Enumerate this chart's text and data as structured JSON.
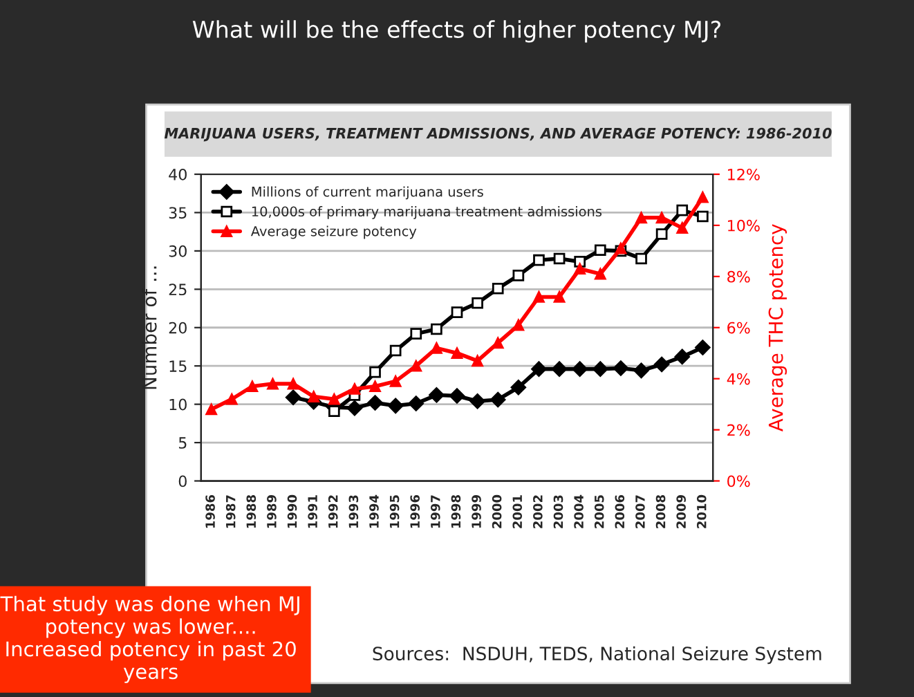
{
  "chart_data": {
    "type": "line",
    "title": "MARIJUANA USERS, TREATMENT ADMISSIONS, AND AVERAGE POTENCY: 1986-2010",
    "subtitle": "What will be the effects of higher potency MJ?",
    "ylabel": "Number of ...",
    "y2label": "Average THC potency",
    "categories": [
      "1986",
      "1987",
      "1988",
      "1989",
      "1990",
      "1991",
      "1992",
      "1993",
      "1994",
      "1995",
      "1996",
      "1997",
      "1998",
      "1999",
      "2000",
      "2001",
      "2002",
      "2003",
      "2004",
      "2005",
      "2006",
      "2007",
      "2008",
      "2009",
      "2010"
    ],
    "series": [
      {
        "name": "Millions of current marijuana users",
        "color": "#000000",
        "marker": "diamond",
        "values": [
          null,
          null,
          null,
          null,
          10.9,
          10.3,
          9.6,
          9.5,
          10.2,
          9.8,
          10.1,
          11.2,
          11.1,
          10.4,
          10.6,
          12.2,
          14.6,
          14.6,
          14.6,
          14.6,
          14.7,
          14.4,
          15.2,
          16.2,
          17.4
        ]
      },
      {
        "name": "10,000s of primary marijuana treatment admissions",
        "color": "#000000",
        "marker": "square",
        "values": [
          null,
          null,
          null,
          null,
          null,
          null,
          9.1,
          11.2,
          14.2,
          17.0,
          19.2,
          19.8,
          22.0,
          23.2,
          25.1,
          26.8,
          28.8,
          29.0,
          28.6,
          30.1,
          30.0,
          29.0,
          32.2,
          35.3,
          34.5
        ]
      },
      {
        "name": "Average seizure potency",
        "color": "#ff0000",
        "marker": "triangle",
        "axis": "y2",
        "values": [
          2.8,
          3.2,
          3.7,
          3.8,
          3.8,
          3.3,
          3.2,
          3.6,
          3.7,
          3.9,
          4.5,
          5.2,
          5.0,
          4.7,
          5.4,
          6.1,
          7.2,
          7.2,
          8.3,
          8.1,
          9.1,
          10.3,
          10.3,
          9.9,
          11.1
        ]
      }
    ],
    "ylim": [
      0,
      40
    ],
    "yticks": [
      0,
      5,
      10,
      15,
      20,
      25,
      30,
      35,
      40
    ],
    "y2lim": [
      0,
      12
    ],
    "y2ticks": [
      {
        "value": 0,
        "label": "0%"
      },
      {
        "value": 2,
        "label": "2%"
      },
      {
        "value": 4,
        "label": "4%"
      },
      {
        "value": 6,
        "label": "6%"
      },
      {
        "value": 8,
        "label": "8%"
      },
      {
        "value": 10,
        "label": "10%"
      },
      {
        "value": 12,
        "label": "12%"
      }
    ],
    "grid": "y",
    "legend": "top left",
    "annotations": [
      "That study was done when MJ potency was lower.... Increased potency in past 20 years",
      "Sources:  NSDUH, TEDS, National Seizure System"
    ]
  }
}
